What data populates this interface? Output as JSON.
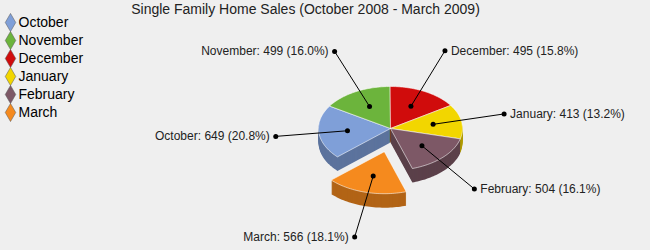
{
  "chart_data": {
    "type": "pie",
    "title": "Single Family Home Sales (October 2008 - March 2009)",
    "categories": [
      "October",
      "November",
      "December",
      "January",
      "February",
      "March"
    ],
    "values": [
      649,
      499,
      495,
      413,
      504,
      566
    ],
    "colors": [
      "#7f9fd8",
      "#6cb43c",
      "#d00c0c",
      "#f2d600",
      "#7d5866",
      "#f58a1e"
    ],
    "value_labels": [
      "October: 649 (20.8%)",
      "November: 499 (16.0%)",
      "December: 495 (15.8%)",
      "January: 413 (13.2%)",
      "February: 504 (16.1%)",
      "March: 566 (18.1%)"
    ],
    "data_labels": true,
    "legend": "top-left"
  }
}
